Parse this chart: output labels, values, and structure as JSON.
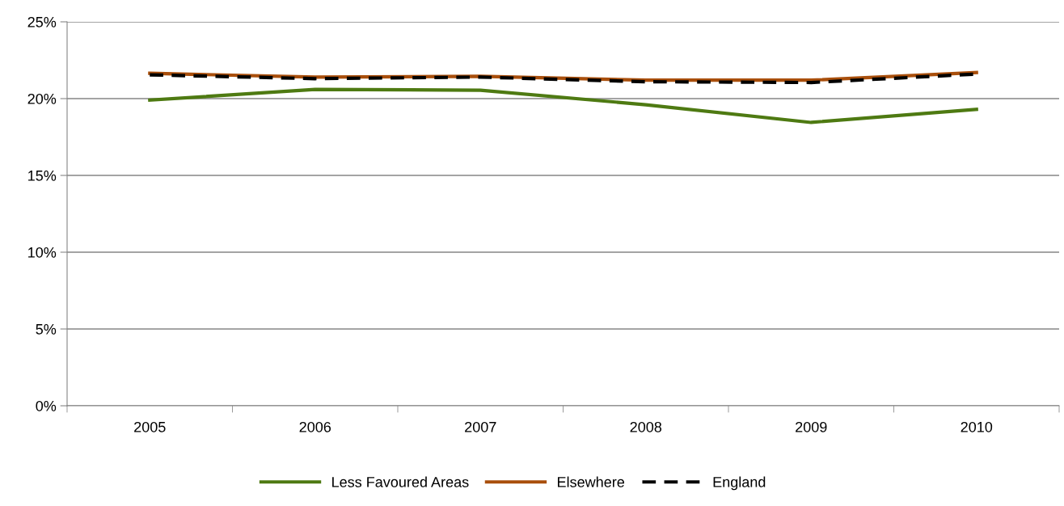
{
  "chart_data": {
    "type": "line",
    "categories": [
      "2005",
      "2006",
      "2007",
      "2008",
      "2009",
      "2010"
    ],
    "series": [
      {
        "name": "Less Favoured Areas",
        "color": "#4e7a12",
        "values": [
          19.9,
          20.6,
          20.55,
          19.6,
          18.45,
          19.3
        ]
      },
      {
        "name": "Elsewhere",
        "color": "#a94f0c",
        "values": [
          21.65,
          21.4,
          21.45,
          21.2,
          21.2,
          21.7
        ]
      },
      {
        "name": "England",
        "color": "#000000",
        "line_style": "dashed",
        "values": [
          21.55,
          21.3,
          21.4,
          21.1,
          21.05,
          21.6
        ]
      }
    ],
    "ylim": [
      0,
      25
    ],
    "yticks": [
      {
        "value": 0,
        "label": "0%"
      },
      {
        "value": 5,
        "label": "5%"
      },
      {
        "value": 10,
        "label": "10%"
      },
      {
        "value": 15,
        "label": "15%"
      },
      {
        "value": 20,
        "label": "20%"
      },
      {
        "value": 25,
        "label": "25%"
      }
    ],
    "grid": "y",
    "legend": "bottom",
    "marker": "none"
  }
}
